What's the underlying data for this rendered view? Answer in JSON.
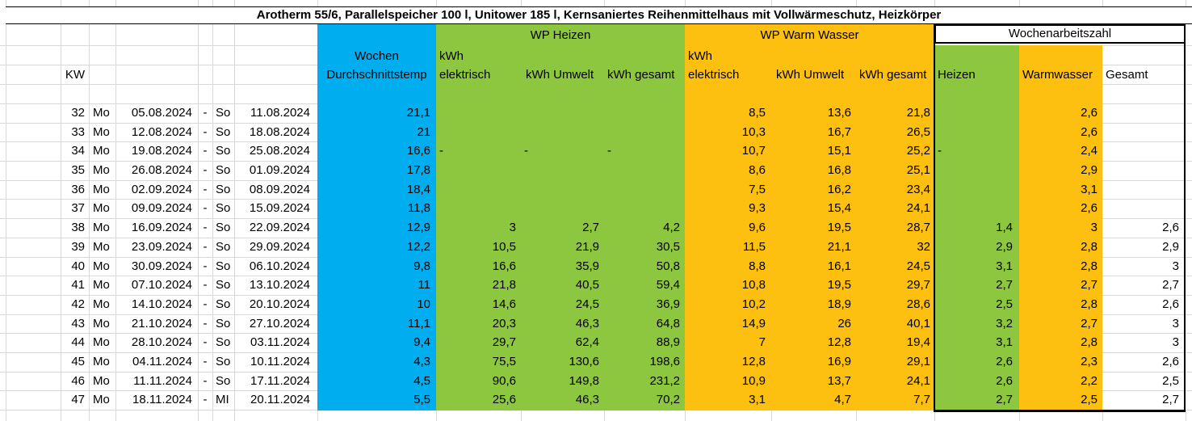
{
  "title": "Arotherm 55/6, Parallelspeicher 100 l, Unitower 185 l, Kernsaniertes Reihenmittelhaus mit Vollwärmeschutz, Heizkörper",
  "colors": {
    "blue": "#00aeef",
    "green": "#8dc63f",
    "orange": "#fdc010",
    "gridline": "#d8d8d8",
    "border": "#000000"
  },
  "headers": {
    "kw": "KW",
    "avg_temp_line1": "Wochen",
    "avg_temp_line2": "Durchschnittstemp",
    "wp_heizen": "WP Heizen",
    "wp_warmwasser": "WP Warm Wasser",
    "wochenarbeitszahl": "Wochenarbeitszahl",
    "kwh_line1": "kWh",
    "kwh_elektrisch_line2": "elektrisch",
    "kwh_umwelt": "kWh Umwelt",
    "kwh_gesamt": "kWh gesamt",
    "az_heizen": "Heizen",
    "az_warmwasser": "Warmwasser",
    "az_gesamt": "Gesamt"
  },
  "table": {
    "columns": [
      "kw",
      "day_from",
      "date_from",
      "separator",
      "day_to",
      "date_to",
      "wochen_durchschnittstemp",
      "heizen_kwh_elektrisch",
      "heizen_kwh_umwelt",
      "heizen_kwh_gesamt",
      "warmwasser_kwh_elektrisch",
      "warmwasser_kwh_umwelt",
      "warmwasser_kwh_gesamt",
      "arbeitszahl_heizen",
      "arbeitszahl_warmwasser",
      "arbeitszahl_gesamt"
    ],
    "rows": [
      [
        "32",
        "Mo",
        "05.08.2024",
        "-",
        "So",
        "11.08.2024",
        "21,1",
        "",
        "",
        "",
        "8,5",
        "13,6",
        "21,8",
        "",
        "2,6",
        ""
      ],
      [
        "33",
        "Mo",
        "12.08.2024",
        "-",
        "So",
        "18.08.2024",
        "21",
        "",
        "",
        "",
        "10,3",
        "16,7",
        "26,5",
        "",
        "2,6",
        ""
      ],
      [
        "34",
        "Mo",
        "19.08.2024",
        "-",
        "So",
        "25.08.2024",
        "16,6",
        "-",
        "-",
        "-",
        "10,7",
        "15,1",
        "25,2",
        "-",
        "2,4",
        ""
      ],
      [
        "35",
        "Mo",
        "26.08.2024",
        "-",
        "So",
        "01.09.2024",
        "17,8",
        "",
        "",
        "",
        "8,6",
        "16,8",
        "25,1",
        "",
        "2,9",
        ""
      ],
      [
        "36",
        "Mo",
        "02.09.2024",
        "-",
        "So",
        "08.09.2024",
        "18,4",
        "",
        "",
        "",
        "7,5",
        "16,2",
        "23,4",
        "",
        "3,1",
        ""
      ],
      [
        "37",
        "Mo",
        "09.09.2024",
        "-",
        "So",
        "15.09.2024",
        "11,8",
        "",
        "",
        "",
        "9,3",
        "15,4",
        "24,1",
        "",
        "2,6",
        ""
      ],
      [
        "38",
        "Mo",
        "16.09.2024",
        "-",
        "So",
        "22.09.2024",
        "12,9",
        "3",
        "2,7",
        "4,2",
        "9,6",
        "19,5",
        "28,7",
        "1,4",
        "3",
        "2,6"
      ],
      [
        "39",
        "Mo",
        "23.09.2024",
        "-",
        "So",
        "29.09.2024",
        "12,2",
        "10,5",
        "21,9",
        "30,5",
        "11,5",
        "21,1",
        "32",
        "2,9",
        "2,8",
        "2,9"
      ],
      [
        "40",
        "Mo",
        "30.09.2024",
        "-",
        "So",
        "06.10.2024",
        "9,8",
        "16,6",
        "35,9",
        "50,8",
        "8,8",
        "16,1",
        "24,5",
        "3,1",
        "2,8",
        "3"
      ],
      [
        "41",
        "Mo",
        "07.10.2024",
        "-",
        "So",
        "13.10.2024",
        "11",
        "21,8",
        "40,5",
        "59,4",
        "10,8",
        "19,5",
        "29,7",
        "2,7",
        "2,7",
        "2,7"
      ],
      [
        "42",
        "Mo",
        "14.10.2024",
        "-",
        "So",
        "20.10.2024",
        "10",
        "14,6",
        "24,5",
        "36,9",
        "10,2",
        "18,9",
        "28,6",
        "2,5",
        "2,8",
        "2,6"
      ],
      [
        "43",
        "Mo",
        "21.10.2024",
        "-",
        "So",
        "27.10.2024",
        "11,1",
        "20,3",
        "46,3",
        "64,8",
        "14,9",
        "26",
        "40,1",
        "3,2",
        "2,7",
        "3"
      ],
      [
        "44",
        "Mo",
        "28.10.2024",
        "-",
        "So",
        "03.11.2024",
        "9,4",
        "29,7",
        "62,4",
        "88,9",
        "7",
        "12,8",
        "19,4",
        "3,1",
        "2,8",
        "3"
      ],
      [
        "45",
        "Mo",
        "04.11.2024",
        "-",
        "So",
        "10.11.2024",
        "4,3",
        "75,5",
        "130,6",
        "198,6",
        "12,8",
        "16,9",
        "29,1",
        "2,6",
        "2,3",
        "2,6"
      ],
      [
        "46",
        "Mo",
        "11.11.2024",
        "-",
        "So",
        "17.11.2024",
        "4,5",
        "90,6",
        "149,8",
        "231,2",
        "10,9",
        "13,7",
        "24,1",
        "2,6",
        "2,2",
        "2,5"
      ],
      [
        "47",
        "Mo",
        "18.11.2024",
        "-",
        "MI",
        "20.11.2024",
        "5,5",
        "25,6",
        "46,3",
        "70,2",
        "3,1",
        "4,7",
        "7,7",
        "2,7",
        "2,5",
        "2,7"
      ]
    ]
  }
}
